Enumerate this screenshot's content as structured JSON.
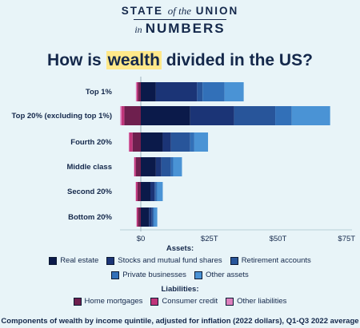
{
  "brand": {
    "line1_a": "STATE",
    "line1_b": "of the",
    "line1_c": "UNION",
    "line2_a": "in",
    "line2_b": "NUMBERS"
  },
  "title": {
    "before": "How is ",
    "highlight": "wealth",
    "after": " divided in the US?"
  },
  "legend": {
    "assets_header": "Assets:",
    "liabilities_header": "Liabilities:"
  },
  "footer": "Components of wealth by income quintile, adjusted for inflation (2022 dollars), Q1-Q3 2022 average",
  "chart_data": {
    "type": "bar",
    "orientation": "horizontal",
    "stacked": true,
    "categories": [
      "Top 1%",
      "Top 20% (excluding top 1%)",
      "Fourth 20%",
      "Middle class",
      "Second 20%",
      "Bottom 20%"
    ],
    "x_ticks": [
      "$0",
      "$25T",
      "$50T",
      "$75T"
    ],
    "xlim": [
      -8,
      75
    ],
    "series": [
      {
        "name": "Real estate",
        "group": "Assets",
        "color": "#0b1a4a",
        "values": [
          5.5,
          18,
          8,
          5.5,
          3.5,
          3
        ]
      },
      {
        "name": "Stocks and mutual fund shares",
        "group": "Assets",
        "color": "#1b3476",
        "values": [
          15,
          16,
          3,
          2,
          1.5,
          1
        ]
      },
      {
        "name": "Retirement accounts",
        "group": "Assets",
        "color": "#28559a",
        "values": [
          2,
          15,
          7,
          3.5,
          0.5,
          0.5
        ]
      },
      {
        "name": "Private businesses",
        "group": "Assets",
        "color": "#3270b8",
        "values": [
          8,
          6,
          1.5,
          0.8,
          0.5,
          0.3
        ]
      },
      {
        "name": "Other assets",
        "group": "Assets",
        "color": "#4a93d5",
        "values": [
          7,
          14,
          5,
          3.2,
          2,
          1.2
        ]
      },
      {
        "name": "Home mortgages",
        "group": "Liabilities",
        "color": "#6e1f4e",
        "values": [
          -1,
          -6,
          -3,
          -1.8,
          -1.2,
          -1
        ]
      },
      {
        "name": "Consumer credit",
        "group": "Liabilities",
        "color": "#c0357a",
        "values": [
          -0.5,
          -1,
          -1.2,
          -0.6,
          -0.6,
          -0.5
        ]
      },
      {
        "name": "Other liabilities",
        "group": "Liabilities",
        "color": "#dd80bd",
        "values": [
          -0.3,
          -0.5,
          -0.2,
          -0.1,
          -0.1,
          -0.1
        ]
      }
    ]
  }
}
